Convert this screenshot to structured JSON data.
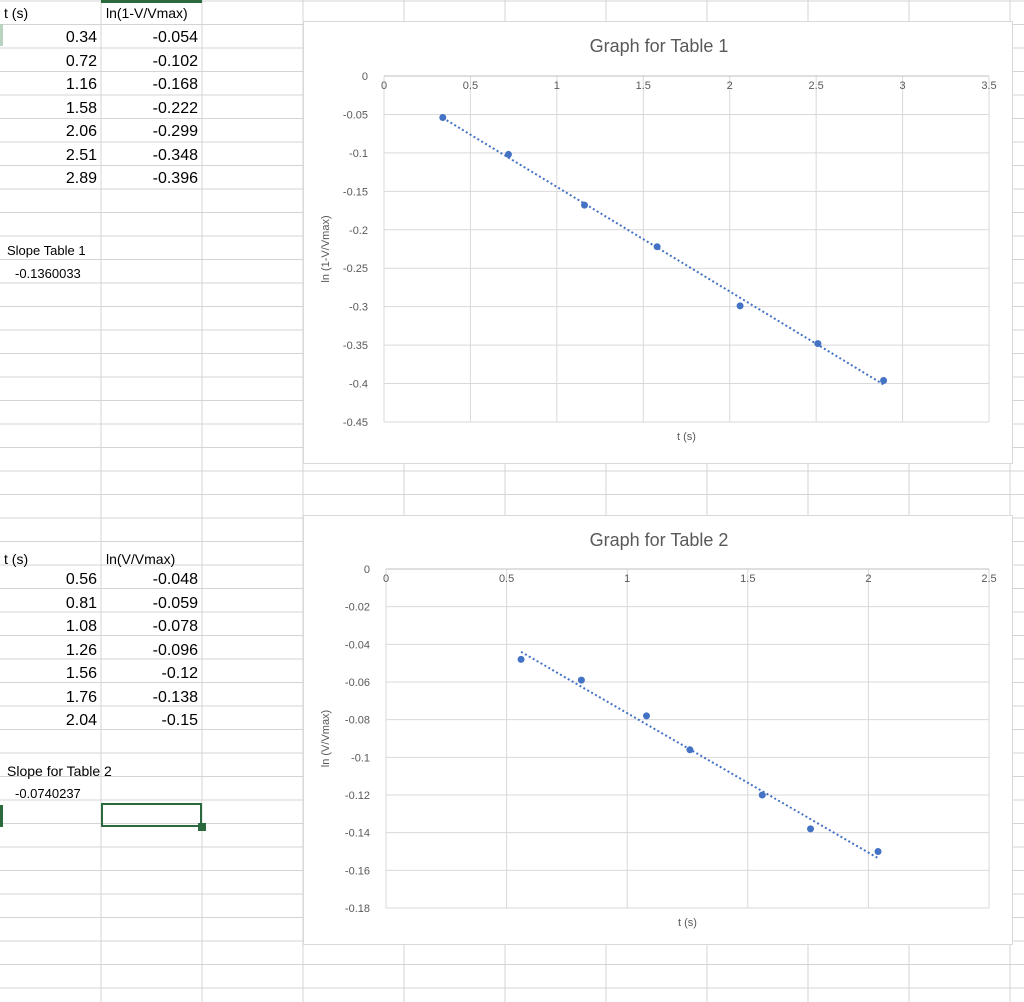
{
  "table1": {
    "header_t": "t (s)",
    "header_ln": "ln(1-V/Vmax)",
    "rows": [
      {
        "t": "0.34",
        "ln": "-0.054"
      },
      {
        "t": "0.72",
        "ln": "-0.102"
      },
      {
        "t": "1.16",
        "ln": "-0.168"
      },
      {
        "t": "1.58",
        "ln": "-0.222"
      },
      {
        "t": "2.06",
        "ln": "-0.299"
      },
      {
        "t": "2.51",
        "ln": "-0.348"
      },
      {
        "t": "2.89",
        "ln": "-0.396"
      }
    ],
    "slope_label": "Slope Table 1",
    "slope_value": "-0.1360033"
  },
  "table2": {
    "header_t": "t (s)",
    "header_ln": "ln(V/Vmax)",
    "rows": [
      {
        "t": "0.56",
        "ln": "-0.048"
      },
      {
        "t": "0.81",
        "ln": "-0.059"
      },
      {
        "t": "1.08",
        "ln": "-0.078"
      },
      {
        "t": "1.26",
        "ln": "-0.096"
      },
      {
        "t": "1.56",
        "ln": "-0.12"
      },
      {
        "t": "1.76",
        "ln": "-0.138"
      },
      {
        "t": "2.04",
        "ln": "-0.15"
      }
    ],
    "slope_label": "Slope for Table 2",
    "slope_value": "-0.0740237"
  },
  "colors": {
    "marker": "#4472c4",
    "gridline": "#d9d9d9",
    "cellgrid": "#d4d4d4",
    "selection": "#2b6a3d",
    "title": "#595959"
  },
  "chart_data": [
    {
      "type": "scatter",
      "title": "Graph for Table 1",
      "xlabel": "t (s)",
      "ylabel": "ln (1-V/Vmax)",
      "xlim": [
        0,
        3.5
      ],
      "ylim": [
        -0.45,
        0
      ],
      "xticks": [
        0,
        0.5,
        1,
        1.5,
        2,
        2.5,
        3,
        3.5
      ],
      "xtick_labels": [
        "0",
        "0.5",
        "1",
        "1.5",
        "2",
        "2.5",
        "3",
        "3.5"
      ],
      "yticks": [
        0,
        -0.05,
        -0.1,
        -0.15,
        -0.2,
        -0.25,
        -0.3,
        -0.35,
        -0.4,
        -0.45
      ],
      "ytick_labels": [
        "0",
        "-0.05",
        "-0.1",
        "-0.15",
        "-0.2",
        "-0.25",
        "-0.3",
        "-0.35",
        "-0.4",
        "-0.45"
      ],
      "grid": true,
      "trendline": "linear, dotted",
      "x": [
        0.34,
        0.72,
        1.16,
        1.58,
        2.06,
        2.51,
        2.89
      ],
      "y": [
        -0.054,
        -0.102,
        -0.168,
        -0.222,
        -0.299,
        -0.348,
        -0.396
      ]
    },
    {
      "type": "scatter",
      "title": "Graph for Table 2",
      "xlabel": "t (s)",
      "ylabel": "ln (V/Vmax)",
      "xlim": [
        0,
        2.5
      ],
      "ylim": [
        -0.18,
        0
      ],
      "xticks": [
        0,
        0.5,
        1,
        1.5,
        2,
        2.5
      ],
      "xtick_labels": [
        "0",
        "0.5",
        "1",
        "1.5",
        "2",
        "2.5"
      ],
      "yticks": [
        0,
        -0.02,
        -0.04,
        -0.06,
        -0.08,
        -0.1,
        -0.12,
        -0.14,
        -0.16,
        -0.18
      ],
      "ytick_labels": [
        "0",
        "-0.02",
        "-0.04",
        "-0.06",
        "-0.08",
        "-0.1",
        "-0.12",
        "-0.14",
        "-0.16",
        "-0.18"
      ],
      "grid": true,
      "trendline": "linear, dotted",
      "x": [
        0.56,
        0.81,
        1.08,
        1.26,
        1.56,
        1.76,
        2.04
      ],
      "y": [
        -0.048,
        -0.059,
        -0.078,
        -0.096,
        -0.12,
        -0.138,
        -0.15
      ]
    }
  ]
}
